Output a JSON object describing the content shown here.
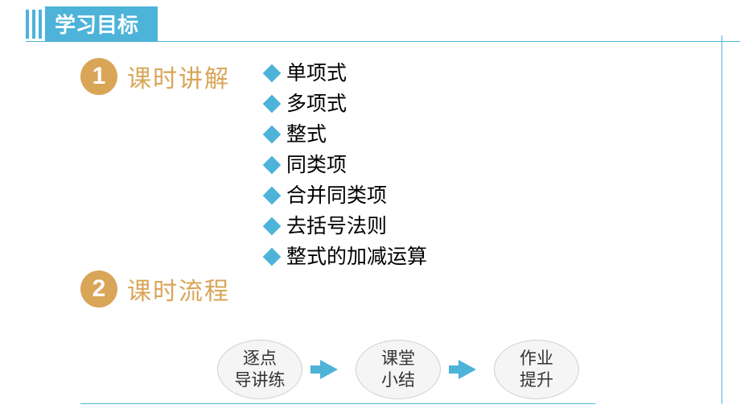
{
  "header": {
    "title": "学习目标"
  },
  "section1": {
    "number": "1",
    "title": "课时讲解"
  },
  "topics": [
    "单项式",
    "多项式",
    "整式",
    "同类项",
    "合并同类项",
    "去括号法则",
    "整式的加减运算"
  ],
  "section2": {
    "number": "2",
    "title": "课时流程"
  },
  "flow": {
    "nodes": [
      {
        "line1": "逐点",
        "line2": "导讲练"
      },
      {
        "line1": "课堂",
        "line2": "小结"
      },
      {
        "line1": "作业",
        "line2": "提升"
      }
    ],
    "node_bg": "#f5f5f5",
    "node_border": "#d0d0d0",
    "arrow_color": "#4db3d9"
  },
  "colors": {
    "primary_blue": "#4db3d9",
    "accent_gold": "#d9a557",
    "text_black": "#000000"
  }
}
